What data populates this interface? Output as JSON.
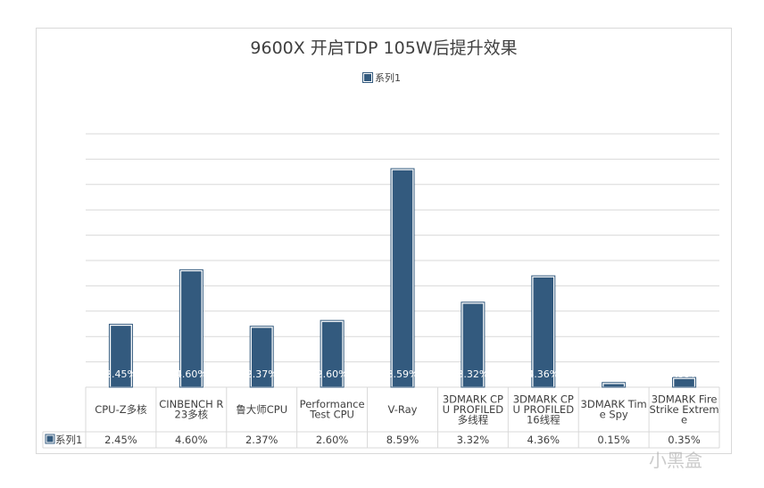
{
  "chart_data": {
    "type": "bar",
    "title": "9600X 开启TDP 105W后提升效果",
    "legend_position": "top",
    "grid": true,
    "ylim": [
      0,
      10
    ],
    "categories": [
      [
        "CPU-Z多核"
      ],
      [
        "CINBENCH R",
        "23多核"
      ],
      [
        "鲁大师CPU"
      ],
      [
        "Performance",
        "Test CPU"
      ],
      [
        "V-Ray"
      ],
      [
        "3DMARK CP",
        "U PROFILED",
        "多线程"
      ],
      [
        "3DMARK CP",
        "U PROFILED",
        "16线程"
      ],
      [
        "3DMARK Tim",
        "e Spy"
      ],
      [
        "3DMARK Fire",
        "Strike Extrem",
        "e"
      ]
    ],
    "series": [
      {
        "name": "系列1",
        "color": "#335a7e",
        "values": [
          2.45,
          4.6,
          2.37,
          2.6,
          8.59,
          3.32,
          4.36,
          0.15,
          0.35
        ],
        "labels": [
          "2.45%",
          "4.60%",
          "2.37%",
          "2.60%",
          "8.59%",
          "3.32%",
          "4.36%",
          "0.15%",
          "0.35%"
        ]
      }
    ]
  },
  "watermark": "小黑盒"
}
